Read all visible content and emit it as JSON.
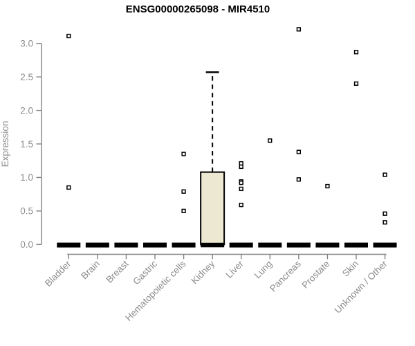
{
  "colors": {
    "background": "#ffffff",
    "title_color": "#000000",
    "axis_color": "#828282",
    "tick_label_color": "#8c8c8c",
    "box_fill": "#ece8d1",
    "box_stroke": "#000000",
    "outlier_stroke": "#000000",
    "outlier_fill": "#ffffff"
  },
  "chart_data": {
    "type": "boxplot",
    "title": "ENSG00000265098 - MIR4510",
    "xlabel": "",
    "ylabel": "Expression",
    "ylim": [
      0.0,
      3.0
    ],
    "yticks": [
      0.0,
      0.5,
      1.0,
      1.5,
      2.0,
      2.5,
      3.0
    ],
    "grid": "off",
    "legend": "none",
    "categories": [
      "Bladder",
      "Brain",
      "Breast",
      "Gastric",
      "Hematopoietic cells",
      "Kidney",
      "Liver",
      "Lung",
      "Pancreas",
      "Prostate",
      "Skin",
      "Unknown / Other"
    ],
    "boxes": [
      {
        "category": "Bladder",
        "q1": 0,
        "median": 0,
        "q3": 0,
        "whisker_low": 0,
        "whisker_high": 0,
        "outliers": [
          3.11,
          0.85
        ]
      },
      {
        "category": "Brain",
        "q1": 0,
        "median": 0,
        "q3": 0,
        "whisker_low": 0,
        "whisker_high": 0,
        "outliers": []
      },
      {
        "category": "Breast",
        "q1": 0,
        "median": 0,
        "q3": 0,
        "whisker_low": 0,
        "whisker_high": 0,
        "outliers": []
      },
      {
        "category": "Gastric",
        "q1": 0,
        "median": 0,
        "q3": 0,
        "whisker_low": 0,
        "whisker_high": 0,
        "outliers": []
      },
      {
        "category": "Hematopoietic cells",
        "q1": 0,
        "median": 0,
        "q3": 0,
        "whisker_low": 0,
        "whisker_high": 0,
        "outliers": [
          1.35,
          0.79,
          0.5
        ]
      },
      {
        "category": "Kidney",
        "q1": 0,
        "median": 0,
        "q3": 1.08,
        "whisker_low": 0,
        "whisker_high": 2.57,
        "outliers": []
      },
      {
        "category": "Liver",
        "q1": 0,
        "median": 0,
        "q3": 0,
        "whisker_low": 0,
        "whisker_high": 0,
        "outliers": [
          1.21,
          1.16,
          0.94,
          0.92,
          0.83,
          0.59
        ]
      },
      {
        "category": "Lung",
        "q1": 0,
        "median": 0,
        "q3": 0,
        "whisker_low": 0,
        "whisker_high": 0,
        "outliers": [
          1.55
        ]
      },
      {
        "category": "Pancreas",
        "q1": 0,
        "median": 0,
        "q3": 0,
        "whisker_low": 0,
        "whisker_high": 0,
        "outliers": [
          3.21,
          1.38,
          0.97
        ]
      },
      {
        "category": "Prostate",
        "q1": 0,
        "median": 0,
        "q3": 0,
        "whisker_low": 0,
        "whisker_high": 0,
        "outliers": [
          0.87
        ]
      },
      {
        "category": "Skin",
        "q1": 0,
        "median": 0,
        "q3": 0,
        "whisker_low": 0,
        "whisker_high": 0,
        "outliers": [
          2.87,
          2.4
        ]
      },
      {
        "category": "Unknown / Other",
        "q1": 0,
        "median": 0,
        "q3": 0,
        "whisker_low": 0,
        "whisker_high": 0,
        "outliers": [
          1.04,
          0.46,
          0.33
        ]
      }
    ]
  }
}
